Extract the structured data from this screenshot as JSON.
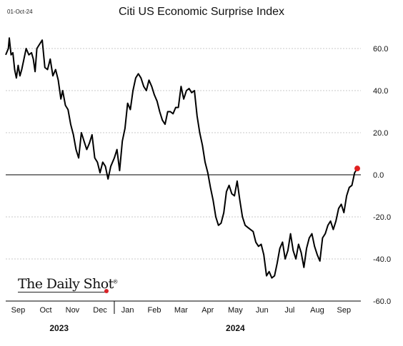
{
  "date_stamp": "01-Oct-24",
  "logo": {
    "text": "The Daily Shot",
    "mark": "®"
  },
  "chart_data": {
    "type": "line",
    "title": "Citi US Economic Surprise Index",
    "xlabel": "",
    "ylabel": "",
    "ylim": [
      -60,
      60
    ],
    "yticks": [
      60.0,
      40.0,
      20.0,
      0.0,
      -20.0,
      -40.0,
      -60.0
    ],
    "ytick_labels": [
      "60.0",
      "40.0",
      "20.0",
      "0.0",
      "-20.0",
      "-40.0",
      "-60.0"
    ],
    "xlim": [
      "2023-09-01",
      "2024-10-04"
    ],
    "month_labels": [
      {
        "label": "Sep",
        "date": "2023-09-15"
      },
      {
        "label": "Oct",
        "date": "2023-10-16"
      },
      {
        "label": "Nov",
        "date": "2023-11-15"
      },
      {
        "label": "Dec",
        "date": "2023-12-16"
      },
      {
        "label": "Jan",
        "date": "2024-01-16"
      },
      {
        "label": "Feb",
        "date": "2024-02-15"
      },
      {
        "label": "Mar",
        "date": "2024-03-16"
      },
      {
        "label": "Apr",
        "date": "2024-04-15"
      },
      {
        "label": "May",
        "date": "2024-05-16"
      },
      {
        "label": "Jun",
        "date": "2024-06-15"
      },
      {
        "label": "Jul",
        "date": "2024-07-16"
      },
      {
        "label": "Aug",
        "date": "2024-08-16"
      },
      {
        "label": "Sep",
        "date": "2024-09-15"
      }
    ],
    "year_labels": [
      {
        "label": "2023",
        "date": "2023-10-31"
      },
      {
        "label": "2024",
        "date": "2024-05-16"
      }
    ],
    "year_separator_date": "2024-01-01",
    "zero_line": true,
    "grid": "horizontal-dashed",
    "line_color": "#000000",
    "marker_color": "#e02020",
    "series": [
      {
        "x": [
          "2023-09-01",
          "2023-09-04",
          "2023-09-05",
          "2023-09-07",
          "2023-09-09",
          "2023-09-11",
          "2023-09-13",
          "2023-09-15",
          "2023-09-17",
          "2023-09-19",
          "2023-09-21",
          "2023-09-24",
          "2023-09-27",
          "2023-09-30",
          "2023-10-02",
          "2023-10-04",
          "2023-10-06",
          "2023-10-09",
          "2023-10-12",
          "2023-10-15",
          "2023-10-18",
          "2023-10-21",
          "2023-10-24",
          "2023-10-27",
          "2023-10-30",
          "2023-11-02",
          "2023-11-04",
          "2023-11-07",
          "2023-11-10",
          "2023-11-13",
          "2023-11-16",
          "2023-11-19",
          "2023-11-22",
          "2023-11-25",
          "2023-11-28",
          "2023-12-01",
          "2023-12-04",
          "2023-12-07",
          "2023-12-10",
          "2023-12-13",
          "2023-12-16",
          "2023-12-19",
          "2023-12-22",
          "2023-12-25",
          "2023-12-28",
          "2024-01-01",
          "2024-01-04",
          "2024-01-07",
          "2024-01-10",
          "2024-01-13",
          "2024-01-16",
          "2024-01-19",
          "2024-01-22",
          "2024-01-25",
          "2024-01-28",
          "2024-01-31",
          "2024-02-03",
          "2024-02-06",
          "2024-02-09",
          "2024-02-12",
          "2024-02-15",
          "2024-02-18",
          "2024-02-21",
          "2024-02-24",
          "2024-02-27",
          "2024-03-01",
          "2024-03-04",
          "2024-03-07",
          "2024-03-10",
          "2024-03-13",
          "2024-03-16",
          "2024-03-19",
          "2024-03-22",
          "2024-03-25",
          "2024-03-28",
          "2024-03-31",
          "2024-04-03",
          "2024-04-06",
          "2024-04-09",
          "2024-04-12",
          "2024-04-15",
          "2024-04-18",
          "2024-04-21",
          "2024-04-24",
          "2024-04-27",
          "2024-04-30",
          "2024-05-03",
          "2024-05-06",
          "2024-05-09",
          "2024-05-12",
          "2024-05-15",
          "2024-05-18",
          "2024-05-21",
          "2024-05-24",
          "2024-05-27",
          "2024-05-30",
          "2024-06-02",
          "2024-06-05",
          "2024-06-08",
          "2024-06-11",
          "2024-06-14",
          "2024-06-17",
          "2024-06-20",
          "2024-06-23",
          "2024-06-26",
          "2024-06-29",
          "2024-07-02",
          "2024-07-05",
          "2024-07-08",
          "2024-07-11",
          "2024-07-14",
          "2024-07-17",
          "2024-07-20",
          "2024-07-23",
          "2024-07-26",
          "2024-07-29",
          "2024-08-01",
          "2024-08-04",
          "2024-08-07",
          "2024-08-10",
          "2024-08-13",
          "2024-08-16",
          "2024-08-19",
          "2024-08-22",
          "2024-08-25",
          "2024-08-28",
          "2024-08-31",
          "2024-09-03",
          "2024-09-06",
          "2024-09-09",
          "2024-09-12",
          "2024-09-15",
          "2024-09-18",
          "2024-09-21",
          "2024-09-24",
          "2024-09-27",
          "2024-09-30"
        ],
        "values": [
          57,
          60,
          65,
          57,
          58,
          50,
          46,
          52,
          47,
          50,
          54,
          60,
          57,
          58,
          55,
          49,
          60,
          62,
          64,
          51,
          50,
          55,
          47,
          50,
          45,
          36,
          40,
          33,
          31,
          24,
          19,
          12,
          8,
          20,
          16,
          12,
          15,
          19,
          8,
          6,
          1,
          6,
          4,
          -2,
          4,
          8,
          12,
          2,
          16,
          22,
          34,
          31,
          40,
          46,
          48,
          46,
          42,
          40,
          45,
          42,
          38,
          35,
          30,
          26,
          24,
          30,
          30,
          29,
          32,
          32,
          42,
          36,
          40,
          41,
          39,
          40,
          28,
          20,
          14,
          6,
          1,
          -6,
          -12,
          -20,
          -24,
          -23,
          -18,
          -8,
          -5,
          -9,
          -10,
          -3,
          -12,
          -20,
          -24,
          -25,
          -26,
          -27,
          -32,
          -34,
          -33,
          -38,
          -48,
          -46,
          -49,
          -48,
          -42,
          -35,
          -32,
          -40,
          -36,
          -28,
          -36,
          -40,
          -33,
          -37,
          -44,
          -35,
          -30,
          -28,
          -34,
          -38,
          -41,
          -30,
          -28,
          -24,
          -22,
          -26,
          -22,
          -16,
          -14,
          -18,
          -10,
          -6,
          -5,
          1,
          3
        ]
      }
    ],
    "end_point": {
      "x": "2024-09-30",
      "y": 3
    }
  }
}
